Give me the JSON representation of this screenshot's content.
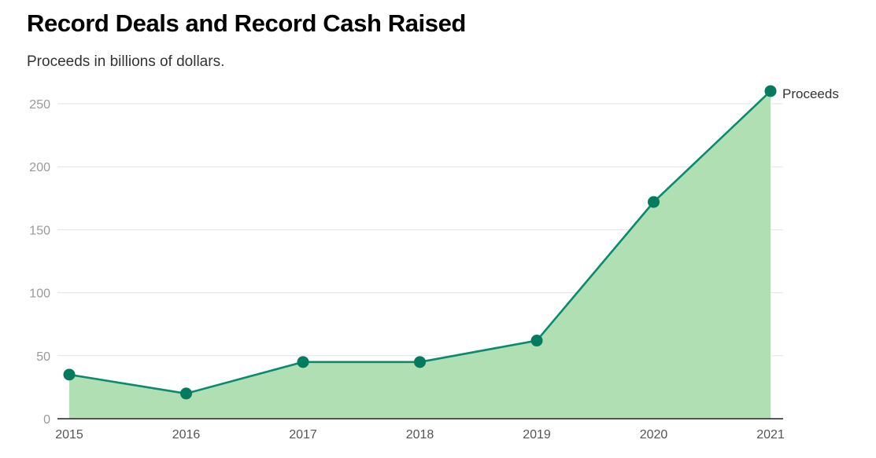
{
  "header": {
    "title": "Record Deals and Record Cash Raised",
    "subtitle": "Proceeds in billions of dollars."
  },
  "colors": {
    "line": "#0a8a6e",
    "marker": "#047a5e",
    "area": "#b0dfb4",
    "grid": "#e3e3e3",
    "axis": "#222222"
  },
  "chart_data": {
    "type": "area",
    "title": "Record Deals and Record Cash Raised",
    "subtitle": "Proceeds in billions of dollars.",
    "xlabel": "",
    "ylabel": "",
    "categories": [
      "2015",
      "2016",
      "2017",
      "2018",
      "2019",
      "2020",
      "2021"
    ],
    "series": [
      {
        "name": "Proceeds",
        "values": [
          35,
          20,
          45,
          45,
          62,
          172,
          260
        ]
      }
    ],
    "ylim": [
      0,
      260
    ],
    "yticks": [
      0,
      50,
      100,
      150,
      200,
      250
    ],
    "yticks_labels": [
      "0",
      "50",
      "100",
      "150",
      "200",
      "250"
    ],
    "grid": true,
    "legend": "end-of-line label"
  }
}
